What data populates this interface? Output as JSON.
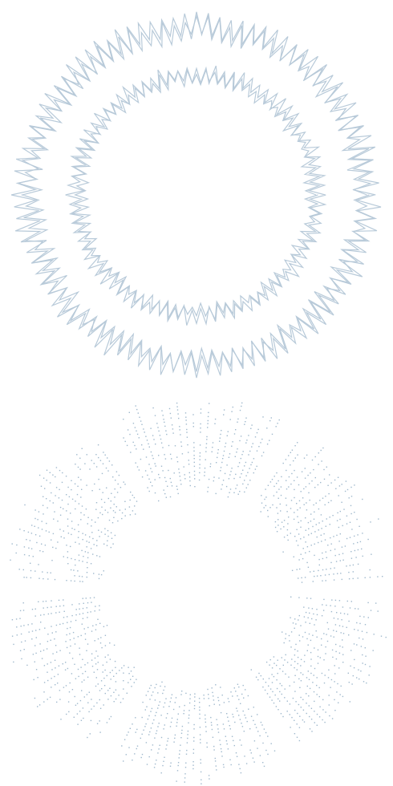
{
  "colors": {
    "background": "#ffffff",
    "stroke": "#b8cad9",
    "dot": "#9fb8cc"
  },
  "patterns": [
    {
      "id": "spiky-double-ring",
      "kind": "ring-pair",
      "outer_ring": {
        "spikes": 96,
        "amplitude_level": "high"
      },
      "inner_ring": {
        "spikes": 84,
        "amplitude_level": "medium"
      }
    },
    {
      "id": "dotted-petal-cluster",
      "kind": "radial-dotted-petals",
      "petals": 6
    }
  ]
}
